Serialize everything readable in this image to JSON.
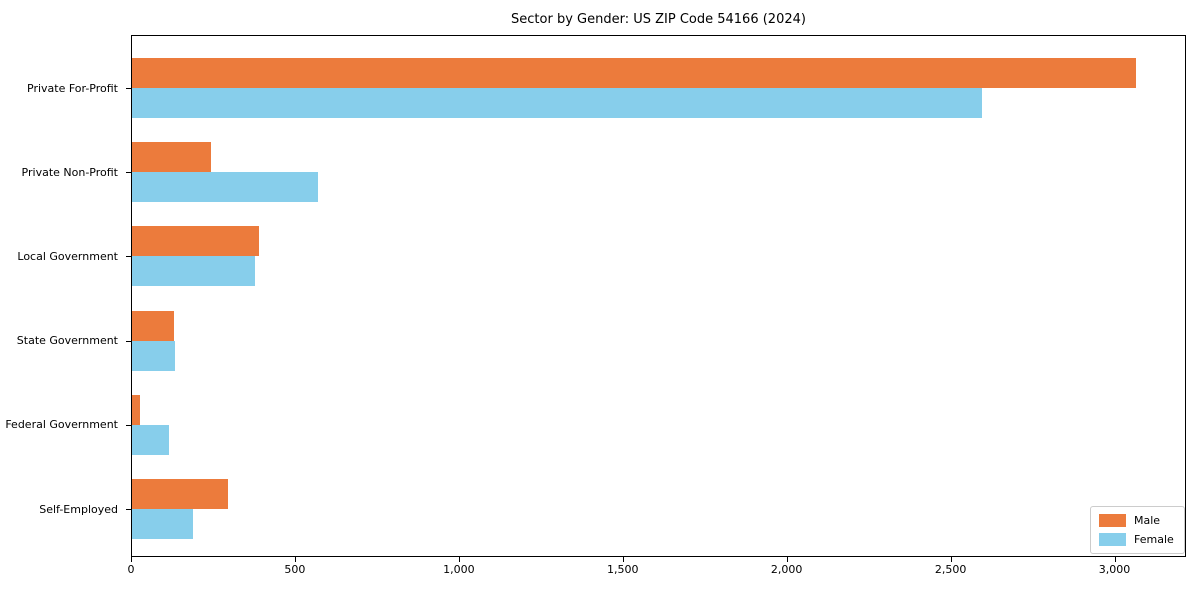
{
  "chart_data": {
    "type": "bar",
    "orientation": "horizontal",
    "title": "Sector by Gender: US ZIP Code 54166 (2024)",
    "categories": [
      "Private For-Profit",
      "Private Non-Profit",
      "Local Government",
      "State Government",
      "Federal Government",
      "Self-Employed"
    ],
    "series": [
      {
        "name": "Male",
        "color": "#EC7B3C",
        "values": [
          3065,
          245,
          390,
          130,
          27,
          297
        ]
      },
      {
        "name": "Female",
        "color": "#87CEEB",
        "values": [
          2595,
          570,
          377,
          134,
          117,
          189
        ]
      }
    ],
    "xlabel": "",
    "ylabel": "",
    "xlim": [
      0,
      3218
    ],
    "xticks": [
      0,
      500,
      1000,
      1500,
      2000,
      2500,
      3000
    ],
    "xtick_labels": [
      "0",
      "500",
      "1,000",
      "1,500",
      "2,000",
      "2,500",
      "3,000"
    ],
    "grid": false,
    "legend_position": "lower right",
    "legend_border_color": "#cccccc"
  }
}
